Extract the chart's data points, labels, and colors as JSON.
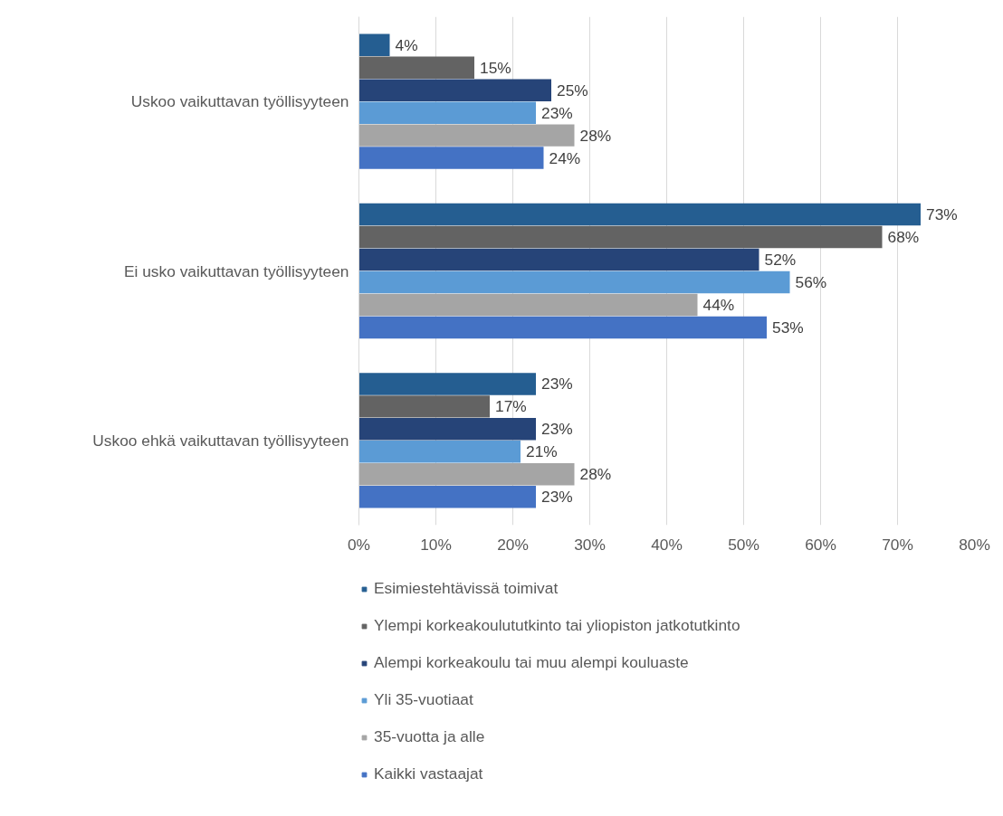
{
  "chart_data": {
    "type": "bar",
    "orientation": "horizontal",
    "categories": [
      "Uskoo vaikuttavan työllisyyteen",
      "Ei usko vaikuttavan työllisyyteen",
      "Uskoo ehkä vaikuttavan työllisyyteen"
    ],
    "series": [
      {
        "name": "Esimiestehtävissä toimivat",
        "color": "#255e91",
        "values": [
          4,
          73,
          23
        ],
        "value_labels": [
          "4%",
          "73%",
          "23%"
        ]
      },
      {
        "name": "Ylempi korkeakoulututkinto tai yliopiston jatkotutkinto",
        "color": "#636363",
        "values": [
          15,
          68,
          17
        ],
        "value_labels": [
          "15%",
          "68%",
          "17%"
        ]
      },
      {
        "name": "Alempi korkeakoulu tai muu alempi kouluaste",
        "color": "#264478",
        "values": [
          25,
          52,
          23
        ],
        "value_labels": [
          "25%",
          "52%",
          "23%"
        ]
      },
      {
        "name": "Yli 35-vuotiaat",
        "color": "#5b9bd5",
        "values": [
          23,
          56,
          21
        ],
        "value_labels": [
          "23%",
          "56%",
          "21%"
        ]
      },
      {
        "name": "35-vuotta ja alle",
        "color": "#a5a5a5",
        "values": [
          28,
          44,
          28
        ],
        "value_labels": [
          "28%",
          "44%",
          "28%"
        ]
      },
      {
        "name": "Kaikki vastaajat",
        "color": "#4472c4",
        "values": [
          24,
          53,
          23
        ],
        "value_labels": [
          "24%",
          "53%",
          "23%"
        ]
      }
    ],
    "xlim": [
      0,
      80
    ],
    "xticks": [
      {
        "value": 0,
        "label": "0%"
      },
      {
        "value": 10,
        "label": "10%"
      },
      {
        "value": 20,
        "label": "20%"
      },
      {
        "value": 30,
        "label": "30%"
      },
      {
        "value": 40,
        "label": "40%"
      },
      {
        "value": 50,
        "label": "50%"
      },
      {
        "value": 60,
        "label": "60%"
      },
      {
        "value": 70,
        "label": "70%"
      },
      {
        "value": 80,
        "label": "80%"
      }
    ],
    "grid": "x",
    "legend": "bottom"
  }
}
